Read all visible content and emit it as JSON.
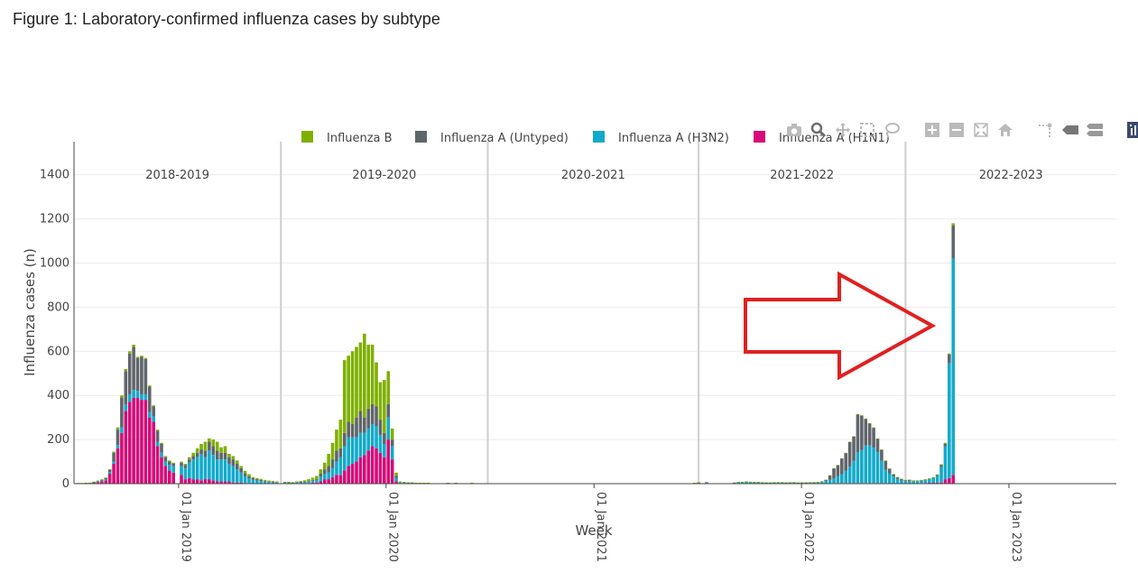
{
  "figure_title": "Figure 1: Laboratory-confirmed influenza cases by subtype",
  "legend_colors": {
    "Influenza B": "#7fb000",
    "Influenza A (Untyped)": "#60656b",
    "Influenza A (H3N2)": "#12aacb",
    "Influenza A (H1N1)": "#d60b78"
  },
  "toolbar": {
    "icons": [
      "camera-icon",
      "zoom-icon",
      "pan-icon",
      "box-select-icon",
      "lasso-icon",
      "zoom-in-icon",
      "zoom-out-icon",
      "autoscale-icon",
      "reset-axes-icon",
      "spike-lines-icon",
      "hover-closest-icon",
      "hover-compare-icon",
      "plotly-logo-icon"
    ]
  },
  "chart_data": {
    "type": "bar",
    "stacked": true,
    "xlabel": "Week",
    "ylabel": "Influenza cases (n)",
    "ylim": [
      0,
      1550
    ],
    "yticks": [
      0,
      200,
      400,
      600,
      800,
      1000,
      1200,
      1400
    ],
    "x_tick_labels": [
      "01 Jan 2019",
      "01 Jan 2020",
      "01 Jan 2021",
      "01 Jan 2022",
      "01 Jan 2023"
    ],
    "xlim": [
      "2018-07-01",
      "2023-07-09"
    ],
    "seasons": [
      {
        "label": "2018-2019",
        "start": "2018-07-01",
        "end": "2019-06-30"
      },
      {
        "label": "2019-2020",
        "start": "2019-06-30",
        "end": "2020-06-28"
      },
      {
        "label": "2020-2021",
        "start": "2020-06-28",
        "end": "2021-07-04"
      },
      {
        "label": "2021-2022",
        "start": "2021-07-04",
        "end": "2022-07-03"
      },
      {
        "label": "2022-2023",
        "start": "2022-07-03",
        "end": "2023-07-09"
      }
    ],
    "grid": true,
    "legend_position": "top",
    "series": [
      {
        "name": "Influenza B"
      },
      {
        "name": "Influenza A (Untyped)"
      },
      {
        "name": "Influenza A (H3N2)"
      },
      {
        "name": "Influenza A (H1N1)"
      }
    ],
    "bar_columns": [
      "week",
      "Influenza A (H1N1)",
      "Influenza A (H3N2)",
      "Influenza A (Untyped)",
      "Influenza B"
    ],
    "bars": [
      [
        "2018-07-08",
        2,
        0,
        0,
        1
      ],
      [
        "2018-07-15",
        2,
        0,
        0,
        1
      ],
      [
        "2018-07-22",
        3,
        0,
        0,
        1
      ],
      [
        "2018-07-29",
        3,
        0,
        0,
        2
      ],
      [
        "2018-08-05",
        5,
        1,
        1,
        2
      ],
      [
        "2018-08-12",
        7,
        2,
        3,
        2
      ],
      [
        "2018-08-19",
        10,
        3,
        4,
        3
      ],
      [
        "2018-08-26",
        15,
        4,
        6,
        3
      ],
      [
        "2018-09-02",
        45,
        8,
        10,
        3
      ],
      [
        "2018-09-09",
        90,
        10,
        40,
        5
      ],
      [
        "2018-09-16",
        160,
        15,
        70,
        10
      ],
      [
        "2018-09-23",
        230,
        25,
        135,
        10
      ],
      [
        "2018-09-30",
        330,
        30,
        150,
        10
      ],
      [
        "2018-10-07",
        370,
        35,
        185,
        10
      ],
      [
        "2018-10-14",
        390,
        35,
        195,
        10
      ],
      [
        "2018-10-21",
        390,
        30,
        150,
        5
      ],
      [
        "2018-10-28",
        380,
        25,
        170,
        5
      ],
      [
        "2018-11-04",
        380,
        25,
        160,
        5
      ],
      [
        "2018-11-11",
        300,
        25,
        115,
        5
      ],
      [
        "2018-11-18",
        280,
        25,
        45,
        5
      ],
      [
        "2018-11-25",
        170,
        20,
        50,
        5
      ],
      [
        "2018-12-02",
        120,
        20,
        40,
        5
      ],
      [
        "2018-12-09",
        80,
        20,
        20,
        5
      ],
      [
        "2018-12-16",
        60,
        25,
        15,
        5
      ],
      [
        "2018-12-23",
        50,
        30,
        10,
        5
      ],
      [
        "2019-01-06",
        40,
        40,
        15,
        5
      ],
      [
        "2019-01-13",
        20,
        50,
        15,
        5
      ],
      [
        "2019-01-20",
        25,
        70,
        15,
        10
      ],
      [
        "2019-01-27",
        20,
        90,
        15,
        15
      ],
      [
        "2019-02-03",
        20,
        100,
        20,
        20
      ],
      [
        "2019-02-10",
        15,
        120,
        20,
        25
      ],
      [
        "2019-02-17",
        20,
        100,
        30,
        40
      ],
      [
        "2019-02-24",
        20,
        130,
        40,
        15
      ],
      [
        "2019-03-03",
        15,
        115,
        40,
        30
      ],
      [
        "2019-03-10",
        10,
        100,
        40,
        40
      ],
      [
        "2019-03-17",
        10,
        100,
        30,
        25
      ],
      [
        "2019-03-24",
        10,
        100,
        30,
        30
      ],
      [
        "2019-03-31",
        10,
        80,
        30,
        15
      ],
      [
        "2019-04-07",
        5,
        75,
        30,
        15
      ],
      [
        "2019-04-14",
        5,
        60,
        25,
        15
      ],
      [
        "2019-04-21",
        5,
        45,
        20,
        10
      ],
      [
        "2019-04-28",
        3,
        30,
        15,
        10
      ],
      [
        "2019-05-05",
        3,
        20,
        10,
        10
      ],
      [
        "2019-05-12",
        2,
        15,
        8,
        5
      ],
      [
        "2019-05-19",
        2,
        12,
        6,
        5
      ],
      [
        "2019-05-26",
        2,
        10,
        5,
        5
      ],
      [
        "2019-06-02",
        1,
        8,
        4,
        4
      ],
      [
        "2019-06-09",
        1,
        6,
        3,
        4
      ],
      [
        "2019-06-16",
        1,
        5,
        3,
        3
      ],
      [
        "2019-06-23",
        1,
        4,
        2,
        3
      ],
      [
        "2019-07-07",
        1,
        3,
        2,
        2
      ],
      [
        "2019-07-14",
        1,
        3,
        2,
        2
      ],
      [
        "2019-07-21",
        1,
        3,
        1,
        2
      ],
      [
        "2019-07-28",
        2,
        3,
        2,
        3
      ],
      [
        "2019-08-04",
        2,
        4,
        2,
        4
      ],
      [
        "2019-08-11",
        3,
        5,
        2,
        5
      ],
      [
        "2019-08-18",
        3,
        6,
        3,
        8
      ],
      [
        "2019-08-25",
        5,
        8,
        4,
        10
      ],
      [
        "2019-09-01",
        5,
        10,
        5,
        15
      ],
      [
        "2019-09-08",
        10,
        20,
        15,
        20
      ],
      [
        "2019-09-15",
        20,
        25,
        20,
        30
      ],
      [
        "2019-09-22",
        20,
        30,
        30,
        55
      ],
      [
        "2019-09-29",
        30,
        40,
        40,
        75
      ],
      [
        "2019-10-06",
        40,
        60,
        50,
        95
      ],
      [
        "2019-10-13",
        40,
        80,
        40,
        130
      ],
      [
        "2019-10-20",
        60,
        110,
        60,
        330
      ],
      [
        "2019-10-27",
        80,
        130,
        70,
        300
      ],
      [
        "2019-11-03",
        90,
        120,
        60,
        330
      ],
      [
        "2019-11-10",
        100,
        110,
        90,
        320
      ],
      [
        "2019-11-17",
        120,
        110,
        100,
        310
      ],
      [
        "2019-11-24",
        130,
        100,
        70,
        380
      ],
      [
        "2019-12-01",
        150,
        100,
        90,
        290
      ],
      [
        "2019-12-08",
        170,
        100,
        90,
        270
      ],
      [
        "2019-12-15",
        160,
        100,
        90,
        200
      ],
      [
        "2019-12-22",
        140,
        80,
        70,
        170
      ],
      [
        "2019-12-29",
        120,
        60,
        50,
        240
      ],
      [
        "2020-01-05",
        200,
        100,
        60,
        150
      ],
      [
        "2020-01-12",
        110,
        60,
        30,
        50
      ],
      [
        "2020-01-19",
        10,
        15,
        10,
        15
      ],
      [
        "2020-01-26",
        2,
        3,
        2,
        3
      ],
      [
        "2020-02-02",
        2,
        2,
        2,
        2
      ],
      [
        "2020-02-09",
        1,
        2,
        1,
        2
      ],
      [
        "2020-02-16",
        1,
        2,
        1,
        2
      ],
      [
        "2020-02-23",
        1,
        1,
        1,
        1
      ],
      [
        "2020-03-01",
        1,
        1,
        1,
        1
      ],
      [
        "2020-03-08",
        1,
        1,
        1,
        1
      ],
      [
        "2020-03-15",
        1,
        1,
        1,
        1
      ],
      [
        "2020-04-19",
        1,
        1,
        1,
        1
      ],
      [
        "2020-05-03",
        1,
        1,
        1,
        1
      ],
      [
        "2020-05-31",
        1,
        1,
        1,
        1
      ],
      [
        "2021-06-27",
        1,
        1,
        1,
        1
      ],
      [
        "2021-07-04",
        2,
        2,
        1,
        1
      ],
      [
        "2021-07-18",
        2,
        3,
        2,
        0
      ],
      [
        "2021-09-05",
        1,
        3,
        1,
        0
      ],
      [
        "2021-09-12",
        1,
        4,
        2,
        1
      ],
      [
        "2021-09-19",
        1,
        4,
        2,
        1
      ],
      [
        "2021-09-26",
        2,
        5,
        2,
        1
      ],
      [
        "2021-10-03",
        1,
        5,
        2,
        1
      ],
      [
        "2021-10-10",
        1,
        4,
        2,
        1
      ],
      [
        "2021-10-17",
        1,
        4,
        2,
        1
      ],
      [
        "2021-10-24",
        1,
        4,
        1,
        1
      ],
      [
        "2021-10-31",
        1,
        3,
        1,
        1
      ],
      [
        "2021-11-07",
        1,
        3,
        1,
        1
      ],
      [
        "2021-11-14",
        1,
        3,
        2,
        1
      ],
      [
        "2021-11-21",
        1,
        3,
        2,
        1
      ],
      [
        "2021-11-28",
        1,
        3,
        2,
        1
      ],
      [
        "2021-12-05",
        1,
        3,
        1,
        1
      ],
      [
        "2021-12-12",
        1,
        3,
        2,
        1
      ],
      [
        "2021-12-19",
        1,
        3,
        2,
        1
      ],
      [
        "2021-12-26",
        1,
        3,
        1,
        1
      ],
      [
        "2022-01-02",
        1,
        3,
        1,
        1
      ],
      [
        "2022-01-09",
        1,
        3,
        1,
        1
      ],
      [
        "2022-01-16",
        1,
        3,
        2,
        1
      ],
      [
        "2022-01-23",
        1,
        3,
        2,
        1
      ],
      [
        "2022-01-30",
        1,
        4,
        2,
        1
      ],
      [
        "2022-02-06",
        1,
        6,
        3,
        1
      ],
      [
        "2022-02-13",
        2,
        10,
        5,
        1
      ],
      [
        "2022-02-20",
        2,
        15,
        20,
        1
      ],
      [
        "2022-02-27",
        3,
        20,
        45,
        2
      ],
      [
        "2022-03-06",
        3,
        30,
        50,
        2
      ],
      [
        "2022-03-13",
        3,
        40,
        70,
        2
      ],
      [
        "2022-03-20",
        3,
        55,
        80,
        2
      ],
      [
        "2022-03-27",
        3,
        75,
        110,
        2
      ],
      [
        "2022-04-03",
        3,
        100,
        110,
        2
      ],
      [
        "2022-04-10",
        3,
        140,
        170,
        2
      ],
      [
        "2022-04-17",
        3,
        150,
        155,
        2
      ],
      [
        "2022-04-24",
        3,
        170,
        120,
        2
      ],
      [
        "2022-05-01",
        3,
        170,
        100,
        2
      ],
      [
        "2022-05-08",
        3,
        160,
        90,
        2
      ],
      [
        "2022-05-15",
        3,
        140,
        60,
        2
      ],
      [
        "2022-05-22",
        3,
        100,
        50,
        2
      ],
      [
        "2022-05-29",
        3,
        60,
        40,
        2
      ],
      [
        "2022-06-05",
        2,
        45,
        20,
        2
      ],
      [
        "2022-06-12",
        2,
        30,
        10,
        2
      ],
      [
        "2022-06-19",
        1,
        20,
        8,
        1
      ],
      [
        "2022-06-26",
        1,
        12,
        8,
        1
      ],
      [
        "2022-07-03",
        1,
        10,
        5,
        1
      ],
      [
        "2022-07-10",
        1,
        10,
        6,
        1
      ],
      [
        "2022-07-17",
        2,
        9,
        3,
        1
      ],
      [
        "2022-07-24",
        2,
        9,
        3,
        1
      ],
      [
        "2022-07-31",
        3,
        10,
        3,
        1
      ],
      [
        "2022-08-07",
        3,
        12,
        3,
        2
      ],
      [
        "2022-08-14",
        4,
        15,
        3,
        2
      ],
      [
        "2022-08-21",
        4,
        20,
        3,
        2
      ],
      [
        "2022-08-28",
        5,
        30,
        5,
        2
      ],
      [
        "2022-09-04",
        5,
        70,
        10,
        3
      ],
      [
        "2022-09-11",
        20,
        150,
        10,
        5
      ],
      [
        "2022-09-18",
        25,
        520,
        40,
        5
      ],
      [
        "2022-09-25",
        40,
        980,
        150,
        10
      ]
    ]
  }
}
